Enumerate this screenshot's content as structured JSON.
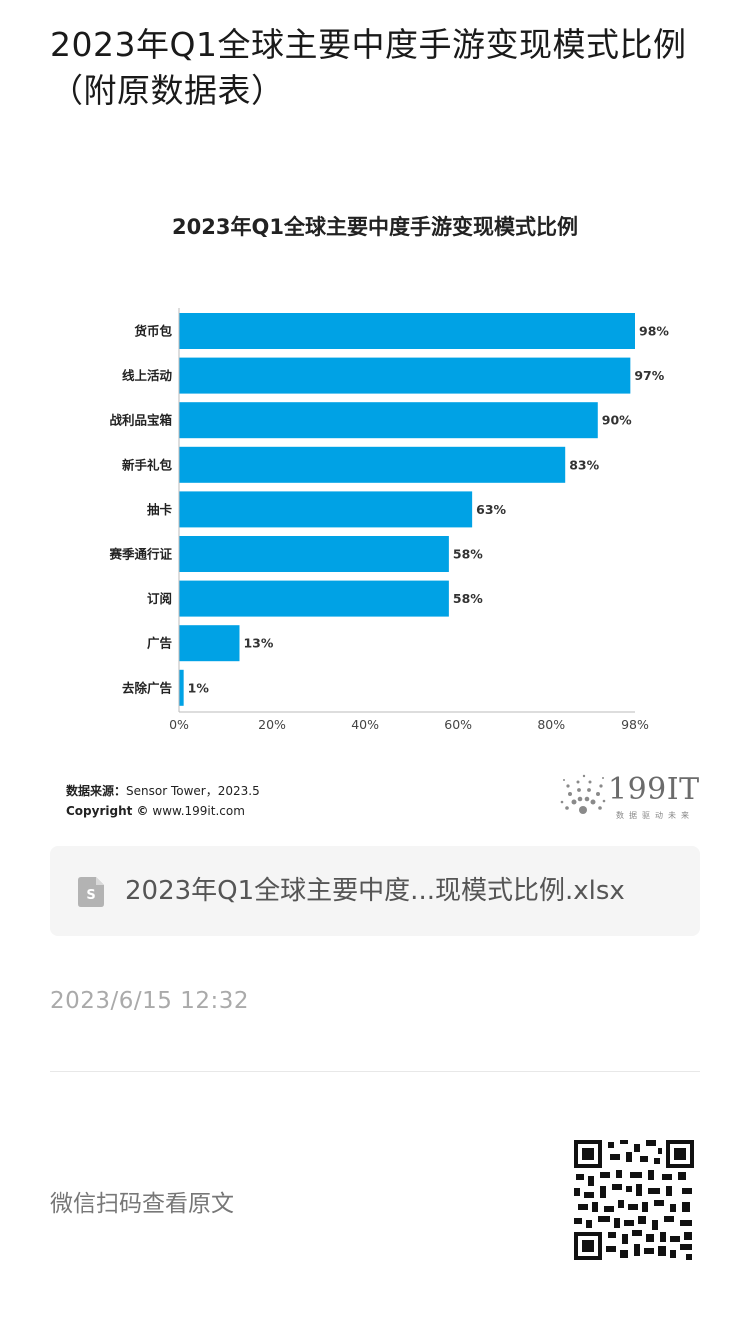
{
  "page": {
    "title": "2023年Q1全球主要中度手游变现模式比例（附原数据表）"
  },
  "chart_data": {
    "type": "bar",
    "orientation": "horizontal",
    "title": "2023年Q1全球主要中度手游变现模式比例",
    "categories": [
      "货币包",
      "线上活动",
      "战利品宝箱",
      "新手礼包",
      "抽卡",
      "赛季通行证",
      "订阅",
      "广告",
      "去除广告"
    ],
    "values": [
      98,
      97,
      90,
      83,
      63,
      58,
      58,
      13,
      1
    ],
    "value_labels": [
      "98%",
      "97%",
      "90%",
      "83%",
      "63%",
      "58%",
      "58%",
      "13%",
      "1%"
    ],
    "xlim": [
      0,
      98
    ],
    "x_ticks": [
      "0%",
      "20%",
      "40%",
      "60%",
      "80%",
      "98%"
    ],
    "x_tick_values": [
      0,
      20,
      40,
      60,
      80,
      98
    ],
    "bar_color": "#00a2e5",
    "grid": false,
    "legend": "none"
  },
  "source": {
    "label": "数据来源：",
    "text": "Sensor Tower，2023.5",
    "copyright_label": "Copyright ©",
    "copyright_site": "www.199it.com"
  },
  "logo": {
    "text": "199IT",
    "tagline": "数据驱动未来"
  },
  "attachment": {
    "icon": "spreadsheet-file-icon",
    "filename": "2023年Q1全球主要中度...现模式比例.xlsx"
  },
  "post": {
    "timestamp": "2023/6/15 12:32",
    "wechat_prompt": "微信扫码查看原文"
  },
  "colors": {
    "accent": "#00a2e5",
    "file_icon": "#b3b3b3",
    "card_bg": "#f5f5f5"
  }
}
